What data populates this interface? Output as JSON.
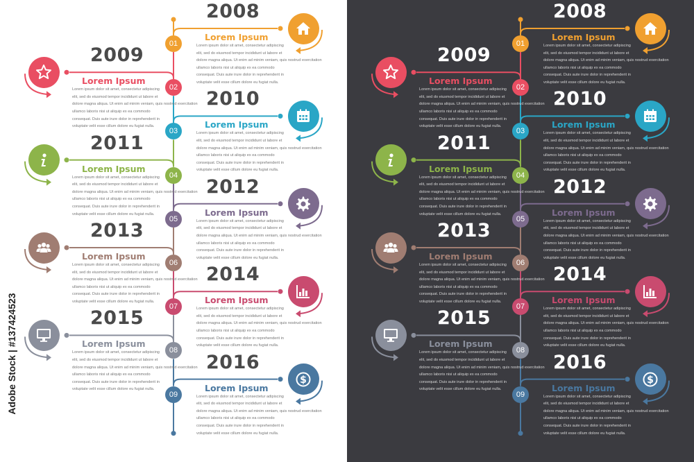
{
  "stock_id": "Adobe Stock | #137424523",
  "colors": {
    "orange": "#f0a030",
    "red": "#e94e62",
    "blue": "#2aa6c6",
    "green": "#8db44a",
    "purple": "#7d6b8e",
    "brown": "#a07d72",
    "pink": "#c94b6f",
    "gray": "#8a8f9c",
    "steel": "#4a78a0",
    "panel_light": "#ffffff",
    "panel_dark": "#3b3b40"
  },
  "milestones": [
    {
      "number": "01",
      "year": "2008",
      "title": "Lorem Ipsum",
      "side": "right",
      "color": "orange",
      "icon": "home-icon"
    },
    {
      "number": "02",
      "year": "2009",
      "title": "Lorem Ipsum",
      "side": "left",
      "color": "red",
      "icon": "star-icon"
    },
    {
      "number": "03",
      "year": "2010",
      "title": "Lorem Ipsum",
      "side": "right",
      "color": "blue",
      "icon": "calendar-icon"
    },
    {
      "number": "04",
      "year": "2011",
      "title": "Lorem Ipsum",
      "side": "left",
      "color": "green",
      "icon": "info-icon"
    },
    {
      "number": "05",
      "year": "2012",
      "title": "Lorem Ipsum",
      "side": "right",
      "color": "purple",
      "icon": "gear-icon"
    },
    {
      "number": "06",
      "year": "2013",
      "title": "Lorem Ipsum",
      "side": "left",
      "color": "brown",
      "icon": "team-icon"
    },
    {
      "number": "07",
      "year": "2014",
      "title": "Lorem Ipsum",
      "side": "right",
      "color": "pink",
      "icon": "bar-chart-icon"
    },
    {
      "number": "08",
      "year": "2015",
      "title": "Lorem Ipsum",
      "side": "left",
      "color": "gray",
      "icon": "monitor-icon"
    },
    {
      "number": "09",
      "year": "2016",
      "title": "Lorem Ipsum",
      "side": "right",
      "color": "steel",
      "icon": "dollar-icon"
    }
  ],
  "body_text": "Lorem ipsum dolor sit amet, consectetur adipiscing\nelit, sed do eiusmod tempor incididunt ut labore et\ndolore magna aliqua. Ut enim ad minim veniam, quis nostrud exercitation\nullamco laboris nisi ut aliquip ex ea commodo\nconsequat. Duis aute irure dolor in reprehenderit in\nvoluptate velit esse cillum dolore eu fugiat nulla."
}
